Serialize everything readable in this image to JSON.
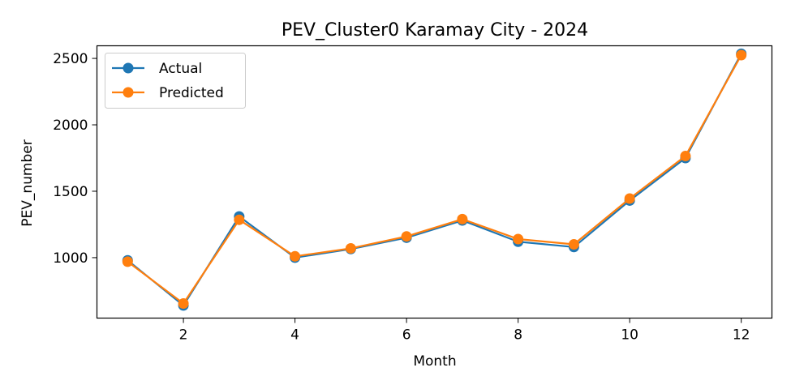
{
  "chart_data": {
    "type": "line",
    "title": "PEV_Cluster0 Karamay City - 2024",
    "xlabel": "Month",
    "ylabel": "PEV_number",
    "x": [
      1,
      2,
      3,
      4,
      5,
      6,
      7,
      8,
      9,
      10,
      11,
      12
    ],
    "xlim": [
      0.45,
      12.55
    ],
    "ylim": [
      545,
      2595
    ],
    "xticks": [
      2,
      4,
      6,
      8,
      10,
      12
    ],
    "yticks": [
      1000,
      1500,
      2000,
      2500
    ],
    "grid": false,
    "legend_position": "top-left",
    "series": [
      {
        "name": "Actual",
        "color": "#1f77b4",
        "values": [
          980,
          640,
          1310,
          1000,
          1065,
          1150,
          1280,
          1120,
          1080,
          1430,
          1750,
          2535
        ]
      },
      {
        "name": "Predicted",
        "color": "#ff7f0e",
        "values": [
          970,
          655,
          1285,
          1010,
          1070,
          1160,
          1290,
          1140,
          1100,
          1445,
          1765,
          2525
        ]
      }
    ]
  }
}
